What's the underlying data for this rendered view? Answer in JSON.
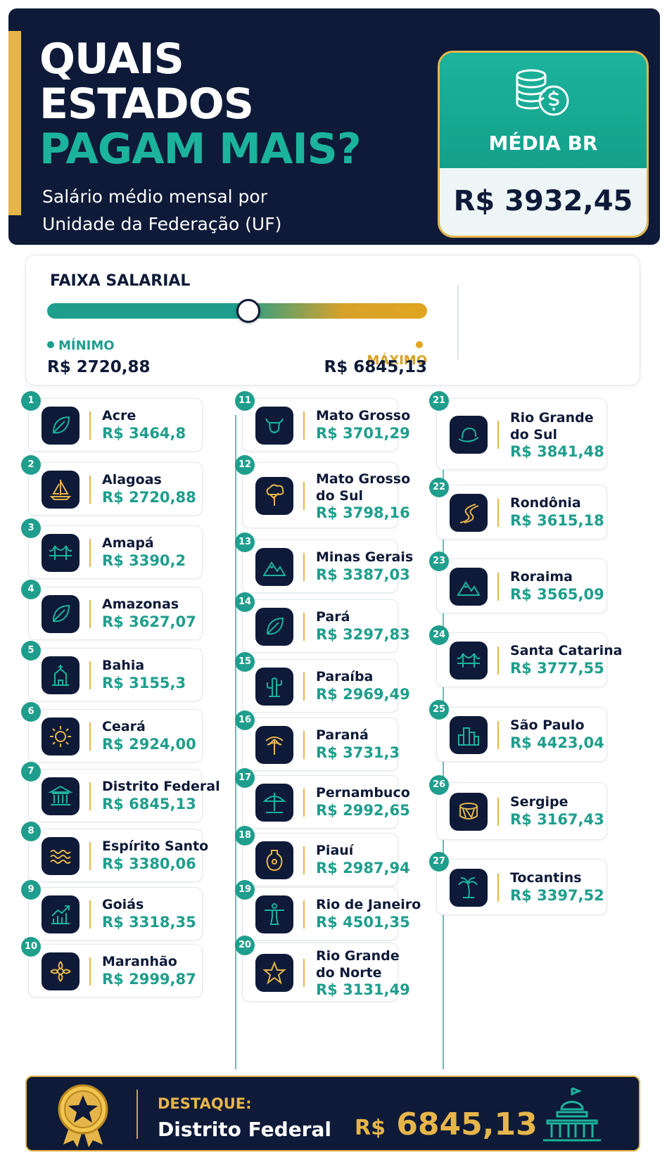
{
  "header": {
    "title_line1": "QUAIS",
    "title_line2": "ESTADOS",
    "title_line3": "PAGAM MAIS?",
    "subtitle_line1": "Salário médio mensal por",
    "subtitle_line2": "Unidade da Federação (UF)"
  },
  "media": {
    "label": "MÉDIA BR",
    "value": "R$ 3932,45",
    "icon": "coins-dollar-icon"
  },
  "range": {
    "title": "FAIXA SALARIAL",
    "min_label": "MÍNIMO",
    "max_label": "MÁXIMO",
    "min_value": "R$ 2720,88",
    "max_value": "R$ 6845,13",
    "knob_fraction": 0.53,
    "min_color": "#1f9e8d",
    "max_color": "#d7a22a"
  },
  "states": [
    {
      "rank": "1",
      "name": "Acre",
      "value": "R$ 3464,8",
      "icon": "leaf-icon"
    },
    {
      "rank": "2",
      "name": "Alagoas",
      "value": "R$ 2720,88",
      "icon": "sailboat-icon"
    },
    {
      "rank": "3",
      "name": "Amapá",
      "value": "R$ 3390,2",
      "icon": "bridge-icon"
    },
    {
      "rank": "4",
      "name": "Amazonas",
      "value": "R$ 3627,07",
      "icon": "leaf-icon"
    },
    {
      "rank": "5",
      "name": "Bahia",
      "value": "R$ 3155,3",
      "icon": "church-icon"
    },
    {
      "rank": "6",
      "name": "Ceará",
      "value": "R$ 2924,00",
      "icon": "sun-icon"
    },
    {
      "rank": "7",
      "name": "Distrito Federal",
      "value": "R$ 6845,13",
      "icon": "government-building-icon"
    },
    {
      "rank": "8",
      "name": "Espírito Santo",
      "value": "R$ 3380,06",
      "icon": "waves-icon"
    },
    {
      "rank": "9",
      "name": "Goiás",
      "value": "R$ 3318,35",
      "icon": "growth-chart-icon"
    },
    {
      "rank": "10",
      "name": "Maranhão",
      "value": "R$ 2999,87",
      "icon": "flower-icon"
    },
    {
      "rank": "11",
      "name": "Mato Grosso",
      "value": "R$ 3701,29",
      "icon": "bull-icon"
    },
    {
      "rank": "12",
      "name": "Mato Grosso do Sul",
      "name_line1": "Mato Grosso",
      "name_line2": "do Sul",
      "value": "R$ 3798,16",
      "icon": "tree-icon"
    },
    {
      "rank": "13",
      "name": "Minas Gerais",
      "value": "R$ 3387,03",
      "icon": "mountains-icon"
    },
    {
      "rank": "14",
      "name": "Pará",
      "value": "R$ 3297,83",
      "icon": "leaf-icon"
    },
    {
      "rank": "15",
      "name": "Paraíba",
      "value": "R$ 2969,49",
      "icon": "cactus-icon"
    },
    {
      "rank": "16",
      "name": "Paraná",
      "value": "R$ 3731,3",
      "icon": "araucaria-icon"
    },
    {
      "rank": "17",
      "name": "Pernambuco",
      "value": "R$ 2992,65",
      "icon": "beach-umbrella-icon"
    },
    {
      "rank": "18",
      "name": "Piauí",
      "value": "R$ 2987,94",
      "icon": "vase-icon"
    },
    {
      "rank": "19",
      "name": "Rio de Janeiro",
      "value": "R$ 4501,35",
      "icon": "christ-statue-icon"
    },
    {
      "rank": "20",
      "name": "Rio Grande do Norte",
      "name_line1": "Rio Grande",
      "name_line2": "do Norte",
      "value": "R$ 3131,49",
      "icon": "starfish-icon"
    },
    {
      "rank": "21",
      "name": "Rio Grande do Sul",
      "name_line1": "Rio Grande",
      "name_line2": "do Sul",
      "value": "R$ 3841,48",
      "icon": "hat-icon"
    },
    {
      "rank": "22",
      "name": "Rondônia",
      "value": "R$ 3615,18",
      "icon": "road-icon"
    },
    {
      "rank": "23",
      "name": "Roraima",
      "value": "R$ 3565,09",
      "icon": "mountains-icon"
    },
    {
      "rank": "24",
      "name": "Santa Catarina",
      "value": "R$ 3777,55",
      "icon": "bridge-icon"
    },
    {
      "rank": "25",
      "name": "São Paulo",
      "value": "R$ 4423,04",
      "icon": "skyline-icon"
    },
    {
      "rank": "26",
      "name": "Sergipe",
      "value": "R$ 3167,43",
      "icon": "drum-icon"
    },
    {
      "rank": "27",
      "name": "Tocantins",
      "value": "R$ 3397,52",
      "icon": "palm-tree-icon"
    }
  ],
  "footer": {
    "label": "DESTAQUE:",
    "name": "Distrito Federal",
    "currency": "R$",
    "value": "6845,13",
    "icon_left": "medal-star-icon",
    "icon_right": "capitol-icon"
  },
  "colors": {
    "navy": "#0e1a38",
    "teal": "#1f9e8d",
    "gold": "#e6b54a"
  }
}
